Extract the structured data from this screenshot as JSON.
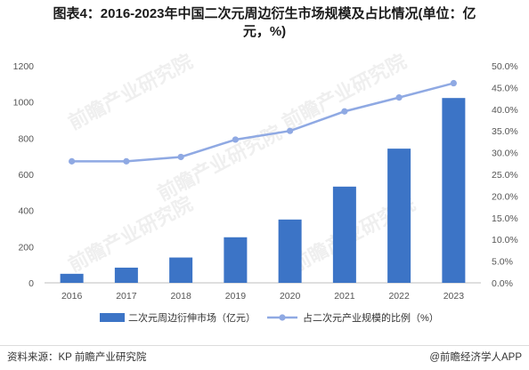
{
  "title_line1": "图表4：2016-2023年中国二次元周边衍生市场规模及占比情况(单位：亿",
  "title_line2": "元，%)",
  "source": "资料来源：KP 前瞻产业研究院",
  "credit": "@前瞻经济学人APP",
  "watermark": "前瞻产业研究院",
  "colors": {
    "bar": "#3c74c6",
    "line": "#8fa9e3",
    "grid": "#e6e6e6"
  },
  "chart_data": {
    "type": "bar+line",
    "categories": [
      "2016",
      "2017",
      "2018",
      "2019",
      "2020",
      "2021",
      "2022",
      "2023"
    ],
    "series": [
      {
        "name": "二次元周边衍伸市场（亿元）",
        "type": "bar",
        "axis": "left",
        "values": [
          50,
          84,
          140,
          252,
          350,
          532,
          742,
          1022
        ]
      },
      {
        "name": "占二次元产业规模的比例（%）",
        "type": "line",
        "axis": "right",
        "values": [
          28.0,
          28.0,
          29.0,
          33.0,
          35.0,
          39.5,
          42.7,
          46.0
        ]
      }
    ],
    "y_left": {
      "min": 0,
      "max": 1200,
      "ticks": [
        0,
        200,
        400,
        600,
        800,
        1000,
        1200
      ]
    },
    "y_right": {
      "min": 0,
      "max": 50,
      "ticks": [
        "0.0%",
        "5.0%",
        "10.0%",
        "15.0%",
        "20.0%",
        "25.0%",
        "30.0%",
        "35.0%",
        "40.0%",
        "45.0%",
        "50.0%"
      ]
    },
    "grid": false,
    "legend_position": "bottom"
  }
}
